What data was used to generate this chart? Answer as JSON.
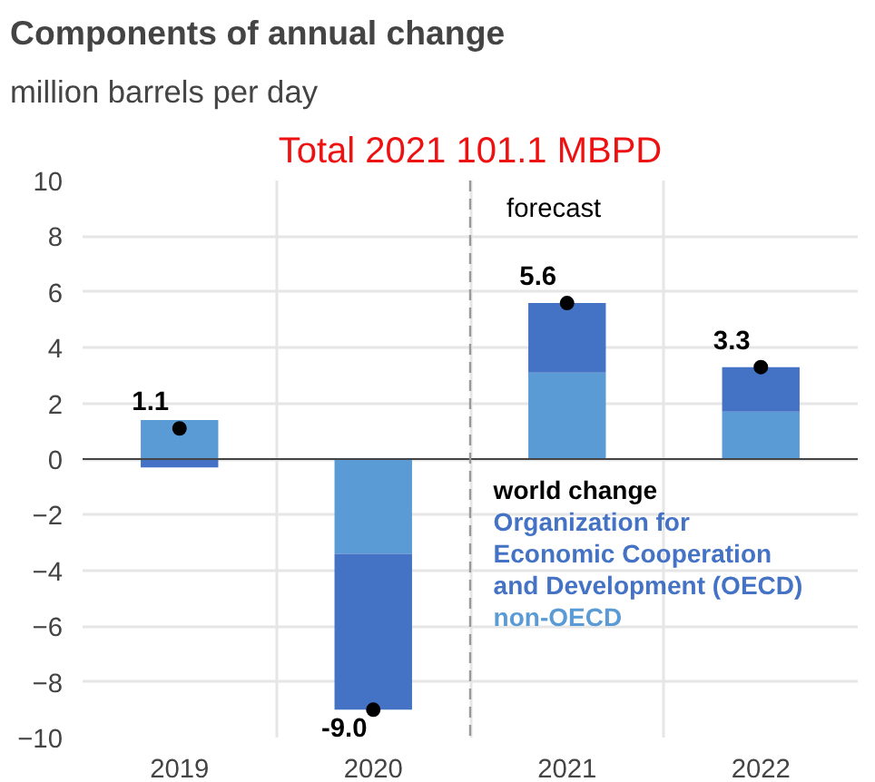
{
  "chart_data": {
    "type": "bar",
    "title": "Components of annual change",
    "subtitle": "million barrels per day",
    "annotations": [
      "Total 2021 101.1 MBPD"
    ],
    "ref_lines": [
      {
        "axis": "x",
        "value": "2021",
        "label": "forecast",
        "color": "#999999",
        "line_style": "dashed"
      }
    ],
    "categories": [
      "2019",
      "2020",
      "2021",
      "2022"
    ],
    "stacked": true,
    "series": [
      {
        "name": "non-OECD",
        "color": "#5b9bd5",
        "values": [
          1.4,
          -3.4,
          3.1,
          1.7
        ]
      },
      {
        "name": "Organization for Economic Cooperation and Development (OECD)",
        "color": "#4472c4",
        "values": [
          -0.3,
          -5.6,
          2.5,
          1.6
        ]
      },
      {
        "name": "world change",
        "type": "scatter",
        "color": "#000000",
        "values": [
          1.1,
          -9.0,
          5.6,
          3.3
        ],
        "value_labels": [
          "1.1",
          "-9.0",
          "5.6",
          "3.3"
        ]
      }
    ],
    "ylim": [
      -10,
      10
    ],
    "yticks": [
      -10,
      -8,
      -6,
      -4,
      -2,
      0,
      2,
      4,
      6,
      8,
      10
    ],
    "grid": true,
    "legend": "right",
    "marker": "circle"
  }
}
